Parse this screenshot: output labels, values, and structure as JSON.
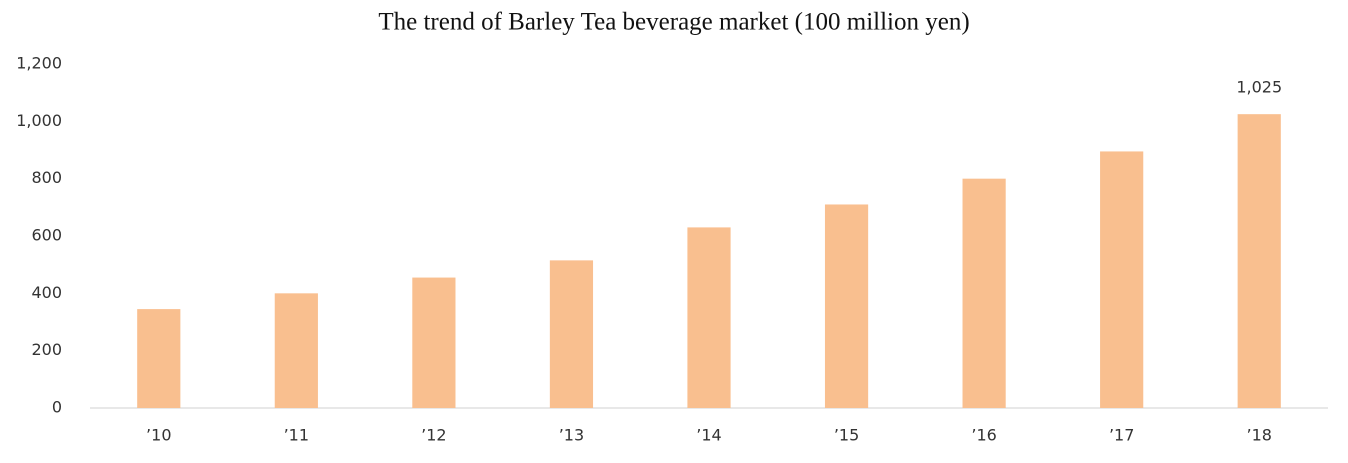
{
  "chart_data": {
    "type": "bar",
    "title": "The trend of Barley Tea beverage market (100 million yen)",
    "categories": [
      "’10",
      "’11",
      "’12",
      "’13",
      "’14",
      "’15",
      "’16",
      "’17",
      "’18"
    ],
    "values": [
      345,
      400,
      455,
      515,
      630,
      710,
      800,
      895,
      1025
    ],
    "value_labels": [
      null,
      null,
      null,
      null,
      null,
      null,
      null,
      null,
      "1,025"
    ],
    "color": "#f9bf8f",
    "ylim": [
      0,
      1200
    ],
    "yticks": [
      0,
      200,
      400,
      600,
      800,
      {
        "value": 1000,
        "label": "1,000"
      },
      {
        "value": 1200,
        "label": "1,200"
      }
    ],
    "grid": false
  }
}
